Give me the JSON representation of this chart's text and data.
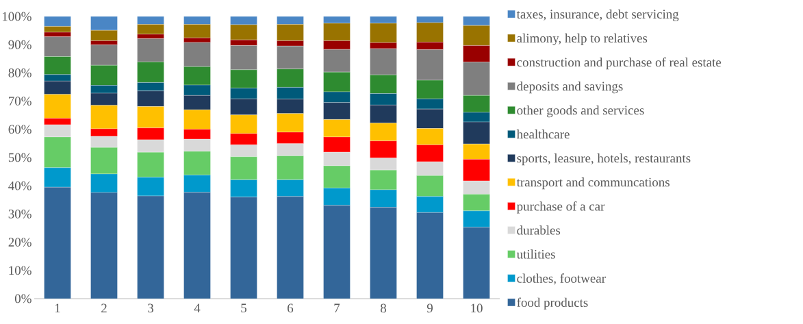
{
  "chart_data": {
    "type": "bar",
    "stacked": true,
    "legend": "right",
    "categories": [
      "1",
      "2",
      "3",
      "4",
      "5",
      "6",
      "7",
      "8",
      "9",
      "10"
    ],
    "ylim": [
      0,
      100
    ],
    "yticks": [
      {
        "value": 0,
        "label": "0%"
      },
      {
        "value": 10,
        "label": "10%"
      },
      {
        "value": 20,
        "label": "20%"
      },
      {
        "value": 30,
        "label": "30%"
      },
      {
        "value": 40,
        "label": "40%"
      },
      {
        "value": 50,
        "label": "50%"
      },
      {
        "value": 60,
        "label": "60%"
      },
      {
        "value": 70,
        "label": "70%"
      },
      {
        "value": 80,
        "label": "80%"
      },
      {
        "value": 90,
        "label": "90%"
      },
      {
        "value": 100,
        "label": "100%"
      }
    ],
    "series": [
      {
        "name": "food products",
        "color": "#336699",
        "values": [
          39.5,
          37.6,
          36.4,
          37.7,
          36.0,
          36.2,
          33.1,
          32.4,
          30.5,
          25.3
        ]
      },
      {
        "name": "clothes, footwear",
        "color": "#0099cc",
        "values": [
          6.9,
          6.6,
          6.6,
          6.1,
          6.1,
          5.9,
          6.1,
          6.2,
          5.7,
          5.8
        ]
      },
      {
        "name": "utilities",
        "color": "#66cc66",
        "values": [
          10.9,
          9.4,
          8.9,
          8.4,
          8.2,
          8.5,
          7.9,
          7.0,
          7.4,
          5.9
        ]
      },
      {
        "name": "durables",
        "color": "#d9d9d9",
        "values": [
          4.3,
          3.9,
          4.4,
          4.3,
          4.2,
          4.3,
          4.8,
          4.2,
          4.9,
          4.7
        ]
      },
      {
        "name": "purchase of a car",
        "color": "#ff0000",
        "values": [
          2.3,
          2.7,
          4.2,
          3.5,
          4.0,
          4.1,
          5.4,
          6.1,
          6.0,
          7.7
        ]
      },
      {
        "name": "transport and communcations",
        "color": "#ffc000",
        "values": [
          8.5,
          8.3,
          7.6,
          6.9,
          6.6,
          6.6,
          6.2,
          6.3,
          5.8,
          5.4
        ]
      },
      {
        "name": "sports, leasure, hotels, restaurants",
        "color": "#203a5c",
        "values": [
          4.7,
          4.3,
          5.5,
          5.1,
          5.7,
          5.1,
          6.0,
          6.4,
          6.9,
          7.8
        ]
      },
      {
        "name": "healthcare",
        "color": "#005a7a",
        "values": [
          2.3,
          2.8,
          3.0,
          3.7,
          3.8,
          4.2,
          3.8,
          4.1,
          3.6,
          3.4
        ]
      },
      {
        "name": "other goods and services",
        "color": "#2e8b30",
        "values": [
          6.4,
          7.1,
          7.3,
          6.5,
          6.5,
          6.5,
          7.0,
          6.6,
          6.6,
          6.0
        ]
      },
      {
        "name": "deposits and savings",
        "color": "#7f7f7f",
        "values": [
          7.0,
          7.2,
          8.2,
          8.6,
          8.6,
          8.1,
          8.0,
          9.3,
          10.8,
          11.8
        ]
      },
      {
        "name": "construction and purchase of real estate",
        "color": "#990000",
        "values": [
          1.6,
          1.5,
          1.6,
          1.6,
          2.0,
          1.9,
          3.1,
          2.1,
          2.7,
          5.9
        ]
      },
      {
        "name": "alimony, help to relatives",
        "color": "#997300",
        "values": [
          2.1,
          3.7,
          3.5,
          4.8,
          5.4,
          5.8,
          6.2,
          6.9,
          6.9,
          7.1
        ]
      },
      {
        "name": "taxes, insurance, debt servicing",
        "color": "#4a86c5",
        "values": [
          3.5,
          4.9,
          2.8,
          2.8,
          2.9,
          2.8,
          2.4,
          2.4,
          2.2,
          3.2
        ]
      }
    ]
  }
}
